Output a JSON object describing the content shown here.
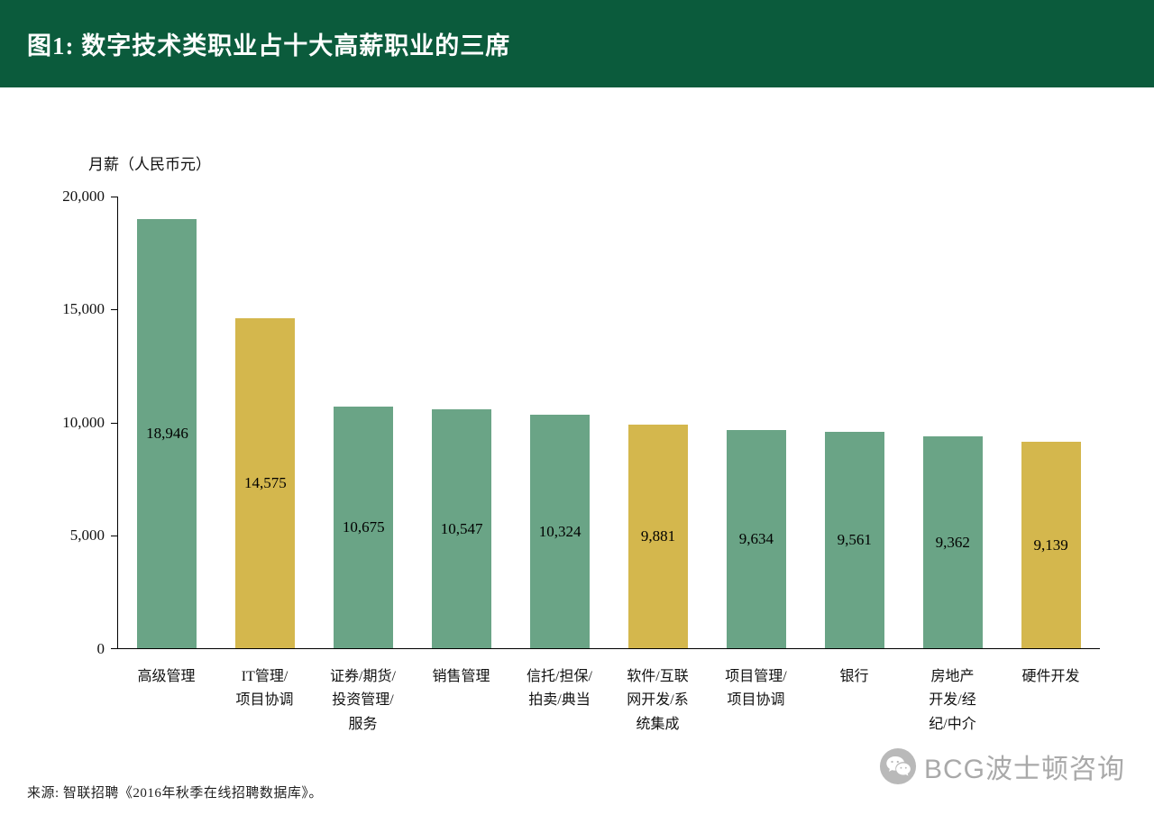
{
  "header": {
    "title": "图1:  数字技术类职业占十大高薪职业的三席",
    "bg_color": "#0B5B3C"
  },
  "chart_data": {
    "type": "bar",
    "title": "数字技术类职业占十大高薪职业的三席",
    "ylabel": "月薪（人民币元）",
    "xlabel": "",
    "ylim": [
      0,
      20000
    ],
    "grid": false,
    "legend": "none",
    "yticks": [
      0,
      5000,
      10000,
      15000,
      20000
    ],
    "ytick_labels": [
      "0",
      "5,000",
      "10,000",
      "15,000",
      "20,000"
    ],
    "categories": [
      "高级管理",
      "IT管理/项目协调",
      "证券/期货/投资管理/服务",
      "销售管理",
      "信托/担保/拍卖/典当",
      "软件/互联网开发/系统集成",
      "项目管理/项目协调",
      "银行",
      "房地产开发/经纪/中介",
      "硬件开发"
    ],
    "category_lines": [
      [
        "高级管理"
      ],
      [
        "IT管理/",
        "项目协调"
      ],
      [
        "证券/期货/",
        "投资管理/",
        "服务"
      ],
      [
        "销售管理"
      ],
      [
        "信托/担保/",
        "拍卖/典当"
      ],
      [
        "软件/互联",
        "网开发/系",
        "统集成"
      ],
      [
        "项目管理/",
        "项目协调"
      ],
      [
        "银行"
      ],
      [
        "房地产",
        "开发/经",
        "纪/中介"
      ],
      [
        "硬件开发"
      ]
    ],
    "values": [
      18946,
      14575,
      10675,
      10547,
      10324,
      9881,
      9634,
      9561,
      9362,
      9139
    ],
    "value_labels": [
      "18,946",
      "14,575",
      "10,675",
      "10,547",
      "10,324",
      "9,881",
      "9,634",
      "9,561",
      "9,362",
      "9,139"
    ],
    "bar_color_keys": [
      "green",
      "gold",
      "green",
      "green",
      "green",
      "gold",
      "green",
      "green",
      "green",
      "gold"
    ],
    "colors": {
      "green": "#6AA486",
      "gold": "#D4B74D"
    }
  },
  "footer": {
    "source": "来源: 智联招聘《2016年秋季在线招聘数据库》。"
  },
  "watermark": {
    "icon": "wechat-icon",
    "label": "BCG波士顿咨询"
  }
}
